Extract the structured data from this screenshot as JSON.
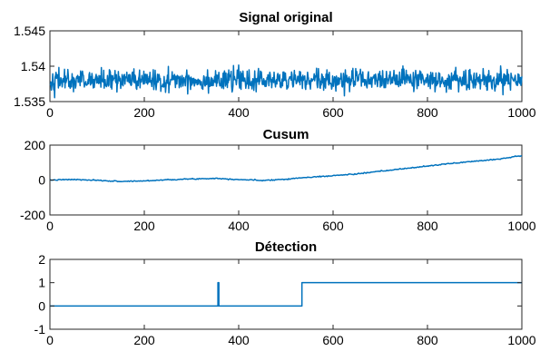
{
  "chart_data": [
    {
      "type": "line",
      "title": "Signal original",
      "xlabel": "",
      "ylabel": "",
      "xlim": [
        0,
        1000
      ],
      "ylim": [
        1.535,
        1.545
      ],
      "xticks": [
        0,
        200,
        400,
        600,
        800,
        1000
      ],
      "xtick_labels": [
        "0",
        "200",
        "400",
        "600",
        "800",
        "1000"
      ],
      "yticks": [
        1.535,
        1.54,
        1.545
      ],
      "ytick_labels": [
        "1.535",
        "1.54",
        "1.545"
      ],
      "grid": false,
      "color": "#0072BD",
      "series": [
        {
          "values_description": "noisy signal, 1000 samples",
          "mean": 1.538,
          "std": 0.00075,
          "n": 1000,
          "min_observed": 1.5355,
          "max_observed": 1.5415
        }
      ]
    },
    {
      "type": "line",
      "title": "Cusum",
      "xlabel": "",
      "ylabel": "",
      "xlim": [
        0,
        1000
      ],
      "ylim": [
        -200,
        200
      ],
      "xticks": [
        0,
        200,
        400,
        600,
        800,
        1000
      ],
      "xtick_labels": [
        "0",
        "200",
        "400",
        "600",
        "800",
        "1000"
      ],
      "yticks": [
        -200,
        0,
        200
      ],
      "ytick_labels": [
        "-200",
        "0",
        "200"
      ],
      "grid": false,
      "color": "#0072BD",
      "series": [
        {
          "x": [
            0,
            50,
            100,
            150,
            200,
            250,
            300,
            350,
            400,
            450,
            500,
            530,
            600,
            650,
            700,
            750,
            800,
            850,
            900,
            950,
            1000
          ],
          "y": [
            0,
            3,
            -2,
            -8,
            -5,
            2,
            6,
            10,
            3,
            -2,
            5,
            12,
            25,
            35,
            50,
            65,
            80,
            95,
            108,
            120,
            140
          ]
        }
      ]
    },
    {
      "type": "line",
      "title": "Détection",
      "xlabel": "",
      "ylabel": "",
      "xlim": [
        0,
        1000
      ],
      "ylim": [
        -1,
        2
      ],
      "xticks": [
        0,
        200,
        400,
        600,
        800,
        1000
      ],
      "xtick_labels": [
        "0",
        "200",
        "400",
        "600",
        "800",
        "1000"
      ],
      "yticks": [
        -1,
        0,
        1,
        2
      ],
      "ytick_labels": [
        "-1",
        "0",
        "1",
        "2"
      ],
      "grid": false,
      "color": "#0072BD",
      "series": [
        {
          "x": [
            0,
            356,
            356,
            358,
            358,
            534,
            534,
            1000
          ],
          "y": [
            0,
            0,
            1,
            1,
            0,
            0,
            1,
            1
          ]
        }
      ]
    }
  ]
}
